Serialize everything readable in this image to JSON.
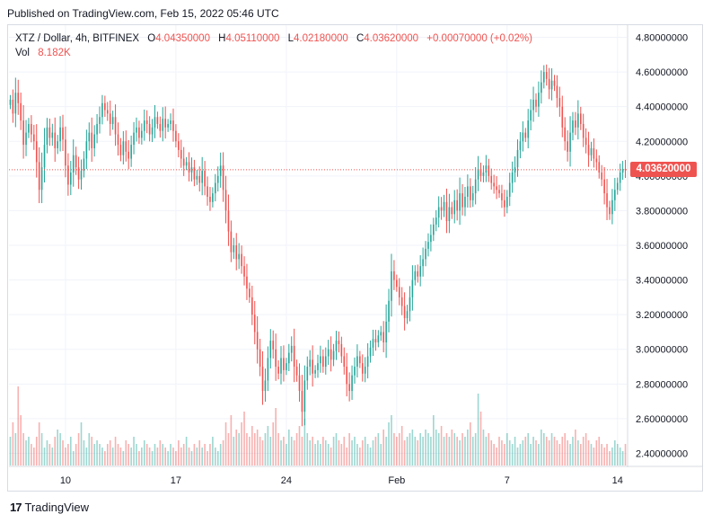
{
  "header": {
    "published": "Published on TradingView.com, Feb 15, 2022 05:46 UTC"
  },
  "legend": {
    "symbol": "XTZ / Dollar, 4h, BITFINEX",
    "o_label": "O",
    "o_value": "4.04350000",
    "h_label": "H",
    "h_value": "4.05110000",
    "l_label": "L",
    "l_value": "4.02180000",
    "c_label": "C",
    "c_value": "4.03620000",
    "change": "+0.00070000 (+0.02%)",
    "vol_label": "Vol",
    "vol_value": "8.182K"
  },
  "price_badge": "4.03620000",
  "brand": {
    "logo_mark": "17",
    "name": "TradingView"
  },
  "colors": {
    "up": "#26a69a",
    "down": "#ef5350",
    "grid": "#f0f3fa",
    "axis_text": "#131722"
  },
  "chart_data": {
    "type": "candlestick",
    "symbol": "XTZ / Dollar",
    "interval": "4h",
    "exchange": "BITFINEX",
    "ylim": [
      2.33,
      4.87
    ],
    "y_ticks": [
      "4.80000000",
      "4.60000000",
      "4.40000000",
      "4.20000000",
      "4.00000000",
      "3.80000000",
      "3.60000000",
      "3.40000000",
      "3.20000000",
      "3.00000000",
      "2.80000000",
      "2.60000000",
      "2.40000000"
    ],
    "y_tick_values": [
      4.8,
      4.6,
      4.4,
      4.2,
      4.0,
      3.8,
      3.6,
      3.4,
      3.2,
      3.0,
      2.8,
      2.6,
      2.4
    ],
    "x_ticks": [
      "10",
      "17",
      "24",
      "Feb",
      "7",
      "14"
    ],
    "x_tick_index": [
      21,
      63,
      105,
      147,
      189,
      231
    ],
    "last_close": 4.0362,
    "close_series": [
      4.44,
      4.36,
      4.48,
      4.42,
      4.32,
      4.18,
      4.25,
      4.3,
      4.24,
      4.2,
      4.08,
      3.92,
      4.05,
      4.18,
      4.28,
      4.22,
      4.25,
      4.16,
      4.2,
      4.28,
      4.21,
      4.06,
      3.95,
      4.02,
      4.12,
      4.05,
      3.98,
      4.03,
      4.1,
      4.2,
      4.25,
      4.16,
      4.24,
      4.3,
      4.34,
      4.42,
      4.38,
      4.36,
      4.3,
      4.34,
      4.24,
      4.18,
      4.12,
      4.2,
      4.14,
      4.1,
      4.18,
      4.25,
      4.28,
      4.22,
      4.26,
      4.32,
      4.3,
      4.24,
      4.28,
      4.34,
      4.3,
      4.26,
      4.33,
      4.28,
      4.3,
      4.32,
      4.26,
      4.2,
      4.15,
      4.1,
      4.06,
      4.08,
      4.02,
      4.05,
      3.98,
      4.0,
      3.96,
      4.03,
      3.94,
      3.88,
      3.85,
      3.9,
      3.96,
      4.0,
      4.06,
      3.92,
      3.8,
      3.68,
      3.56,
      3.6,
      3.52,
      3.55,
      3.48,
      3.42,
      3.35,
      3.3,
      3.2,
      3.1,
      3.0,
      2.9,
      2.76,
      2.82,
      2.95,
      3.05,
      3.0,
      2.9,
      2.86,
      2.95,
      2.88,
      2.92,
      2.98,
      3.02,
      2.9,
      2.85,
      2.76,
      2.64,
      2.82,
      2.9,
      2.94,
      2.86,
      2.88,
      2.92,
      2.96,
      2.9,
      2.96,
      3.0,
      2.94,
      2.99,
      3.05,
      3.03,
      2.96,
      2.9,
      2.8,
      2.76,
      2.85,
      2.9,
      2.96,
      2.92,
      2.86,
      2.9,
      2.96,
      3.01,
      3.06,
      3.04,
      3.08,
      3.1,
      3.04,
      3.16,
      3.28,
      3.45,
      3.4,
      3.36,
      3.3,
      3.25,
      3.18,
      3.22,
      3.3,
      3.4,
      3.45,
      3.42,
      3.48,
      3.52,
      3.58,
      3.62,
      3.66,
      3.72,
      3.76,
      3.82,
      3.8,
      3.85,
      3.74,
      3.82,
      3.78,
      3.86,
      3.8,
      3.9,
      3.82,
      3.88,
      3.94,
      3.86,
      3.9,
      3.98,
      4.04,
      4.0,
      4.02,
      4.06,
      4.0,
      3.96,
      3.94,
      3.92,
      3.9,
      3.86,
      3.82,
      3.88,
      3.96,
      4.02,
      4.05,
      4.15,
      4.2,
      4.25,
      4.22,
      4.32,
      4.38,
      4.44,
      4.4,
      4.48,
      4.54,
      4.6,
      4.56,
      4.5,
      4.55,
      4.52,
      4.45,
      4.4,
      4.28,
      4.2,
      4.14,
      4.25,
      4.32,
      4.28,
      4.36,
      4.3,
      4.22,
      4.18,
      4.12,
      4.16,
      4.1,
      4.08,
      4.02,
      3.98,
      3.9,
      3.82,
      3.78,
      3.86,
      3.92,
      3.96,
      4.02,
      4.04,
      4.036
    ],
    "volume_heights": [
      8,
      12,
      9,
      22,
      14,
      9,
      7,
      8,
      6,
      5,
      8,
      12,
      9,
      5,
      7,
      6,
      5,
      8,
      10,
      9,
      7,
      5,
      6,
      8,
      4,
      6,
      9,
      12,
      7,
      5,
      9,
      8,
      6,
      7,
      6,
      5,
      4,
      6,
      7,
      5,
      8,
      6,
      5,
      4,
      7,
      6,
      5,
      8,
      6,
      4,
      5,
      7,
      6,
      5,
      4,
      6,
      5,
      7,
      6,
      5,
      4,
      6,
      5,
      4,
      7,
      5,
      6,
      8,
      5,
      4,
      6,
      5,
      7,
      5,
      6,
      4,
      6,
      8,
      5,
      4,
      6,
      7,
      12,
      9,
      14,
      8,
      10,
      9,
      12,
      15,
      9,
      8,
      11,
      9,
      10,
      8,
      7,
      9,
      11,
      8,
      12,
      16,
      9,
      7,
      8,
      6,
      10,
      8,
      7,
      9,
      11,
      8,
      13,
      9,
      7,
      8,
      6,
      7,
      6,
      8,
      7,
      6,
      5,
      8,
      9,
      7,
      6,
      8,
      5,
      9,
      7,
      8,
      6,
      5,
      7,
      8,
      6,
      5,
      7,
      8,
      9,
      6,
      10,
      8,
      12,
      14,
      9,
      8,
      9,
      11,
      7,
      8,
      9,
      10,
      8,
      7,
      9,
      8,
      10,
      9,
      8,
      14,
      10,
      9,
      11,
      8,
      9,
      8,
      10,
      9,
      8,
      7,
      9,
      8,
      10,
      12,
      8,
      9,
      20,
      15,
      10,
      8,
      9,
      7,
      6,
      5,
      8,
      7,
      6,
      9,
      7,
      6,
      8,
      5,
      6,
      7,
      8,
      9,
      6,
      8,
      7,
      6,
      10,
      9,
      8,
      7,
      9,
      8,
      7,
      6,
      8,
      9,
      7,
      6,
      8,
      10,
      7,
      6,
      8,
      9,
      7,
      6,
      5,
      7,
      8,
      6,
      5,
      6,
      4,
      5,
      7,
      6,
      5,
      4,
      6,
      5,
      7,
      4,
      5,
      3
    ]
  }
}
